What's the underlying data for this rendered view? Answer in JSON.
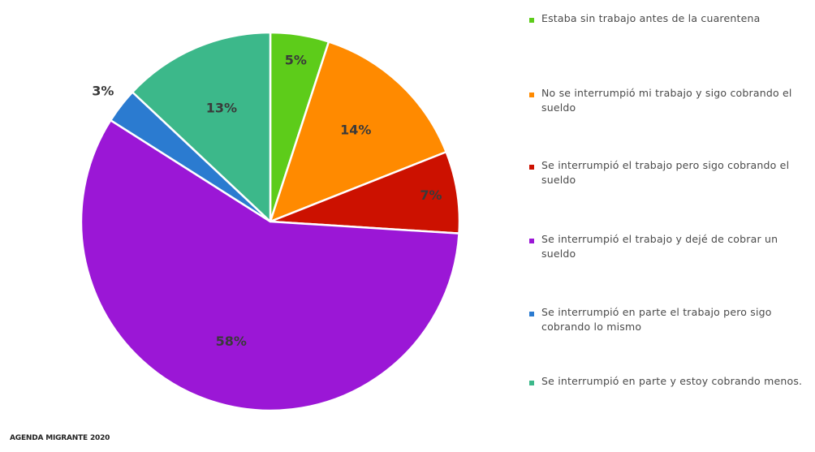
{
  "chart_data": {
    "type": "pie",
    "title": "",
    "slices": [
      {
        "label": "Estaba sin trabajo antes de la cuarentena",
        "value": 5,
        "display": "5%",
        "color": "#5dcc1a"
      },
      {
        "label": "No se interrumpió mi trabajo y sigo cobrando el sueldo",
        "value": 14,
        "display": "14%",
        "color": "#ff8a00"
      },
      {
        "label": "Se interrumpió el trabajo pero sigo cobrando el sueldo",
        "value": 7,
        "display": "7%",
        "color": "#cc1100"
      },
      {
        "label": "Se interrumpió el trabajo y dejé de cobrar un sueldo",
        "value": 58,
        "display": "58%",
        "color": "#9b17d6"
      },
      {
        "label": "Se interrumpió en parte el trabajo pero sigo cobrando lo mismo",
        "value": 3,
        "display": "3%",
        "color": "#2b7bd0"
      },
      {
        "label": "Se interrumpió en parte y estoy cobrando menos.",
        "value": 13,
        "display": "13%",
        "color": "#3cb88a"
      }
    ],
    "legend_position": "right"
  },
  "footer": {
    "source": "AGENDA MIGRANTE 2020"
  }
}
